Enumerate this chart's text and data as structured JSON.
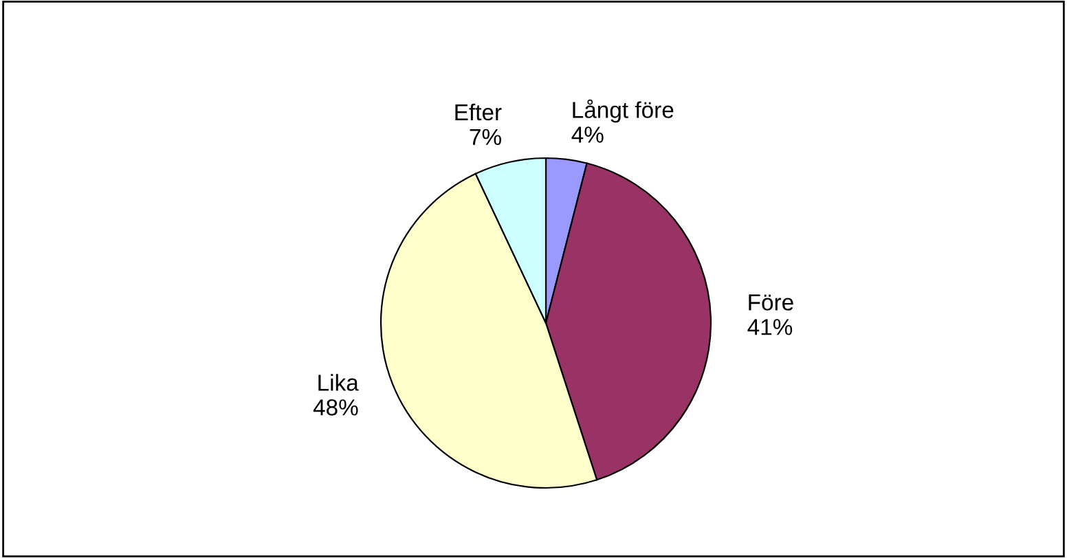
{
  "chart_data": {
    "type": "pie",
    "categories": [
      "Långt före",
      "Före",
      "Lika",
      "Efter"
    ],
    "values": [
      4,
      41,
      48,
      7
    ],
    "value_labels": [
      "4%",
      "41%",
      "48%",
      "7%"
    ],
    "colors": [
      "#9999ff",
      "#993366",
      "#ffffcc",
      "#ccffff"
    ],
    "legend": false
  }
}
